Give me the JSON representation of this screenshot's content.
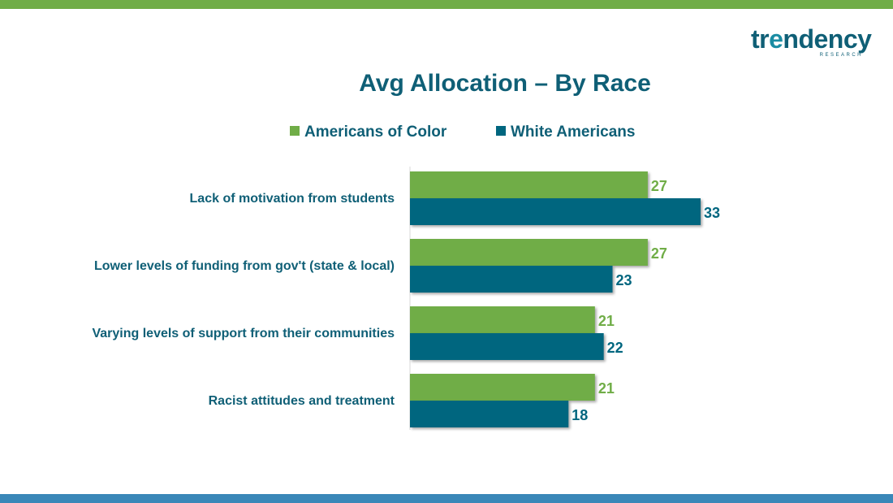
{
  "logo": {
    "wordmark_pre": "tr",
    "wordmark_hl": "e",
    "wordmark_post": "ndency",
    "subtext": "RESEARCH"
  },
  "chart_data": {
    "type": "bar",
    "orientation": "horizontal",
    "title": "Avg Allocation – By Race",
    "categories": [
      "Lack of motivation from students",
      "Lower levels of funding from gov't (state & local)",
      "Varying levels of support from their communities",
      "Racist attitudes and treatment"
    ],
    "series": [
      {
        "name": "Americans of Color",
        "values": [
          27,
          27,
          21,
          21
        ],
        "color": "#70ad47"
      },
      {
        "name": "White Americans",
        "values": [
          33,
          23,
          22,
          18
        ],
        "color": "#00667f"
      }
    ],
    "xlim": [
      0,
      33
    ],
    "legend_position": "top",
    "grid": false,
    "data_labels": true
  }
}
